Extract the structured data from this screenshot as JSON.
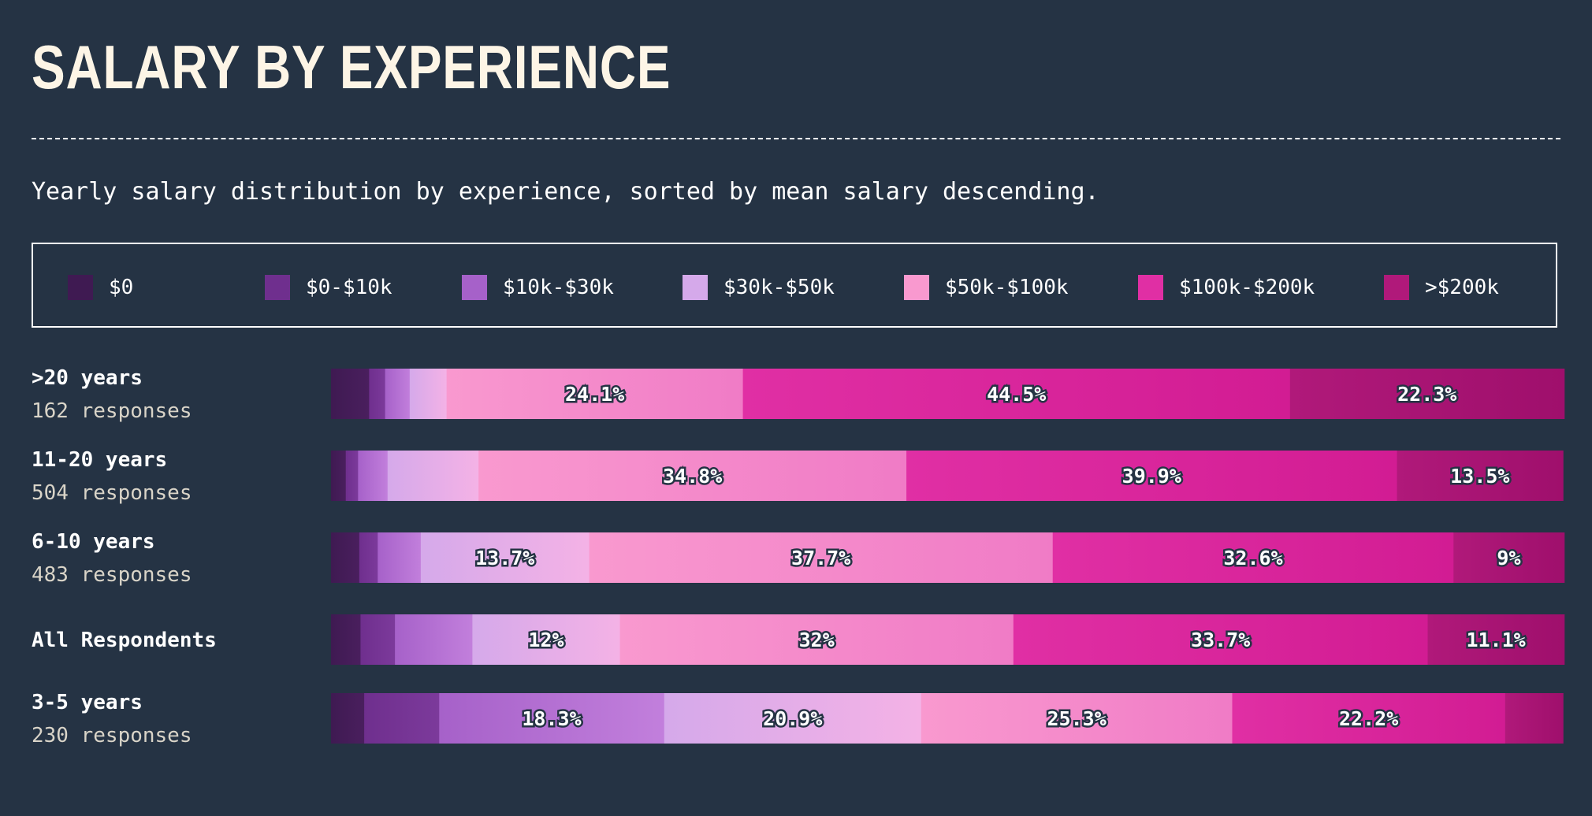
{
  "title": "SALARY BY EXPERIENCE",
  "subtitle": "Yearly salary distribution by experience, sorted by mean salary descending.",
  "legend": [
    {
      "label": "$0",
      "color": "#3f1a52"
    },
    {
      "label": "$0-$10k",
      "color": "#6f2f8e"
    },
    {
      "label": "$10k-$30k",
      "color": "#a661c9"
    },
    {
      "label": "$30k-$50k",
      "color": "#d5a9ea"
    },
    {
      "label": "$50k-$100k",
      "color": "#f999cf"
    },
    {
      "label": "$100k-$200k",
      "color": "#e02fa4"
    },
    {
      "label": ">$200k",
      "color": "#b0197a"
    }
  ],
  "rows": [
    {
      "name": ">20 years",
      "responses": "162 responses"
    },
    {
      "name": "11-20 years",
      "responses": "504 responses"
    },
    {
      "name": "6-10 years",
      "responses": "483 responses"
    },
    {
      "name": "All Respondents",
      "responses": ""
    },
    {
      "name": "3-5 years",
      "responses": "230 responses"
    }
  ],
  "chart_data": {
    "type": "bar",
    "stacked": true,
    "orientation": "horizontal",
    "normalized_percent": true,
    "title": "SALARY BY EXPERIENCE",
    "subtitle": "Yearly salary distribution by experience, sorted by mean salary descending.",
    "categories": [
      ">20 years",
      "11-20 years",
      "6-10 years",
      "All Respondents",
      "3-5 years"
    ],
    "category_responses": [
      162,
      504,
      483,
      null,
      230
    ],
    "series": [
      {
        "name": "$0",
        "values": [
          3.1,
          1.2,
          2.3,
          2.4,
          2.7
        ]
      },
      {
        "name": "$0-$10k",
        "values": [
          1.3,
          1.0,
          1.5,
          2.8,
          6.1
        ]
      },
      {
        "name": "$10k-$30k",
        "values": [
          2.0,
          2.4,
          3.5,
          6.3,
          18.3
        ]
      },
      {
        "name": "$30k-$50k",
        "values": [
          3.0,
          7.4,
          13.7,
          12.0,
          20.9
        ]
      },
      {
        "name": "$50k-$100k",
        "values": [
          24.1,
          34.8,
          37.7,
          32.0,
          25.3
        ]
      },
      {
        "name": "$100k-$200k",
        "values": [
          44.5,
          39.9,
          32.6,
          33.7,
          22.2
        ]
      },
      {
        "name": ">$200k",
        "values": [
          22.3,
          13.5,
          9.0,
          11.1,
          4.7
        ]
      }
    ],
    "data_labels": [
      [
        "",
        "",
        "",
        "",
        "24.1%",
        "44.5%",
        "22.3%"
      ],
      [
        "",
        "",
        "",
        "",
        "34.8%",
        "39.9%",
        "13.5%"
      ],
      [
        "",
        "",
        "",
        "13.7%",
        "37.7%",
        "32.6%",
        "9%"
      ],
      [
        "",
        "",
        "",
        "12%",
        "32%",
        "33.7%",
        "11.1%"
      ],
      [
        "",
        "",
        "18.3%",
        "20.9%",
        "25.3%",
        "22.2%",
        ""
      ]
    ],
    "xlim": [
      0,
      100
    ],
    "legend_position": "top"
  },
  "gradient_end_colors": [
    "#4a1f5e",
    "#7c3a9b",
    "#c27fdc",
    "#f4b2e6",
    "#f07bc6",
    "#d21c93",
    "#9f0f6c"
  ]
}
